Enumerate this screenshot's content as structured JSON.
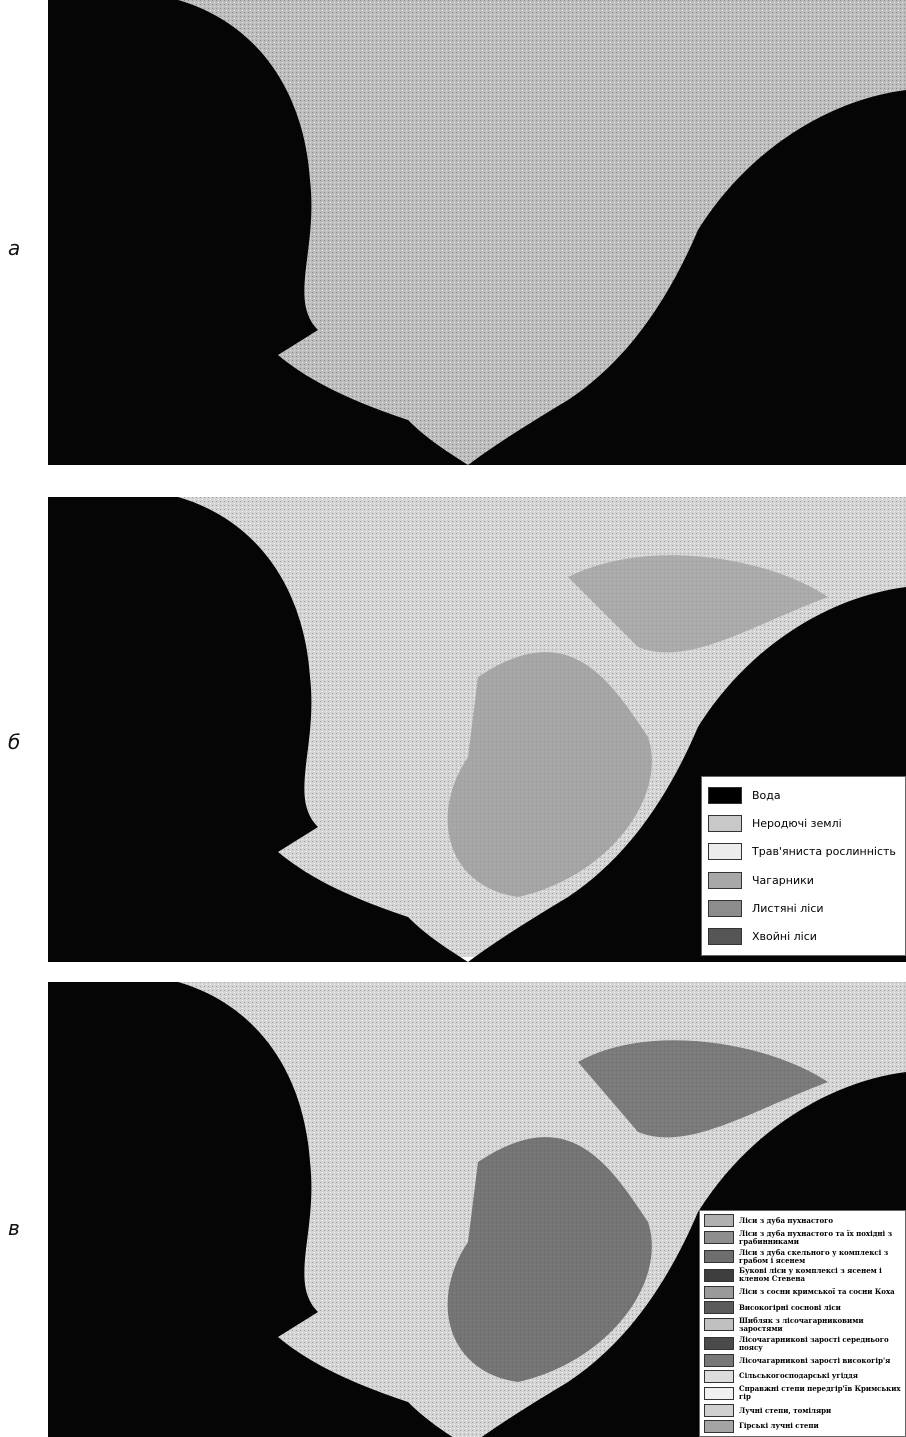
{
  "panel_labels": [
    "а",
    "б",
    "в"
  ],
  "legend_b": [
    "Вода",
    "Неродючі землі",
    "Трав'яниста рослинність",
    "Чагарники",
    "Листяні ліси",
    "Хвойні ліси"
  ],
  "legend_c": [
    "Ліси з дуба пухнастого",
    "Ліси з дуба пухнастого та їх похідні з грабинниками",
    "Ліси з дуба скельного у комплексі з грабом і ясенем",
    "Букові ліси у комплексі з ясенем і кленом Стевена",
    "Ліси з сосни кримської та сосни Коха",
    "Високогірні соснові ліси",
    "Шибляк з лісочагарниковими заростями",
    "Лісочагарникові зарості середнього поясу",
    "Лісочагарникові зарості високогір'я",
    "Сільськогосподарські угіддя",
    "Справжні степи передгір'їв Кримських гір",
    "Лучні степи, томіляри",
    "Гірські лучні степи"
  ]
}
